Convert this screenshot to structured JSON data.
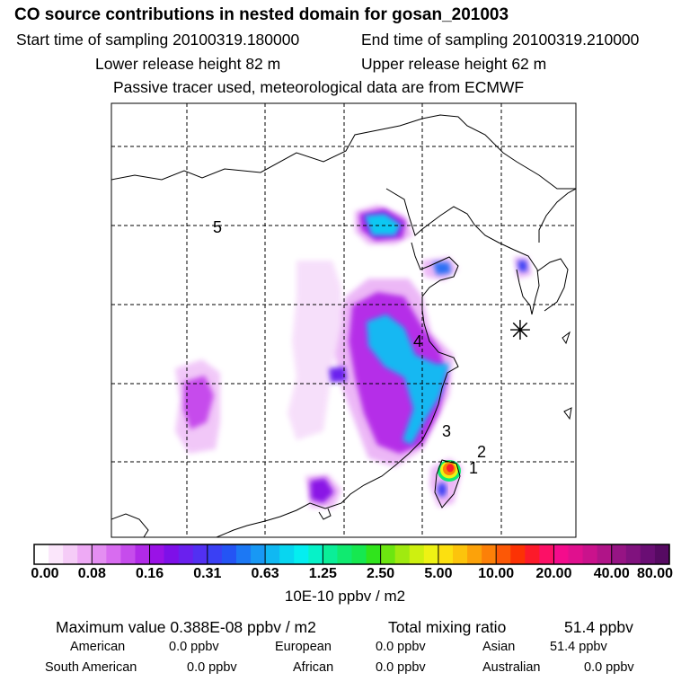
{
  "title": "CO  source contributions in nested domain for gosan_201003",
  "header": {
    "start_label": "Start time of sampling 20100319.180000",
    "end_label": "End time of sampling 20100319.210000",
    "lower_label": "Lower release height   82 m",
    "upper_label": "Upper release height   62 m",
    "info": "Passive tracer used, meteorological data are from ECMWF"
  },
  "chart_data": {
    "type": "heatmap",
    "title": "CO  source contributions in nested domain for gosan_201003",
    "colorbar": {
      "ticks": [
        "0.00",
        "0.08",
        "0.16",
        "0.31",
        "0.63",
        "1.25",
        "2.50",
        "5.00",
        "10.00",
        "20.00",
        "40.00",
        "80.00"
      ],
      "unit": "10E-10 ppbv / m2",
      "colors": [
        "#ffffff",
        "#fbe6fb",
        "#f5ccf7",
        "#eeaaf5",
        "#e48ef2",
        "#d86cf0",
        "#c64cec",
        "#b12ae8",
        "#9a12e6",
        "#7e10e8",
        "#6a20ee",
        "#5230f2",
        "#3a40f4",
        "#2454f4",
        "#1c78f4",
        "#1898f4",
        "#10b8f2",
        "#08d6f0",
        "#04eef0",
        "#06f2c8",
        "#0aee98",
        "#10ea70",
        "#16e850",
        "#30e41c",
        "#6ce610",
        "#a0ea10",
        "#cef010",
        "#eef214",
        "#fce010",
        "#fcc40c",
        "#fca20a",
        "#fc8008",
        "#fc5806",
        "#fc3204",
        "#fc1a2a",
        "#fc1066",
        "#f40c8c",
        "#e0108e",
        "#ca128c",
        "#b01488",
        "#961484",
        "#80127e",
        "#6a0e74",
        "#560a62"
      ]
    },
    "labels": [
      "1",
      "2",
      "3",
      "4",
      "5"
    ],
    "receptor_symbol": "✳"
  },
  "summary": {
    "max_label": "Maximum value  0.388E-08 ppbv / m2",
    "total_label": "Total mixing ratio",
    "total_value": "51.4 ppbv"
  },
  "regions": [
    {
      "name": "American",
      "value": "0.0 ppbv"
    },
    {
      "name": "European",
      "value": "0.0 ppbv"
    },
    {
      "name": "Asian",
      "value": "51.4 ppbv"
    },
    {
      "name": "South American",
      "value": "0.0 ppbv"
    },
    {
      "name": "African",
      "value": "0.0 ppbv"
    },
    {
      "name": "Australian",
      "value": "0.0 ppbv"
    }
  ]
}
